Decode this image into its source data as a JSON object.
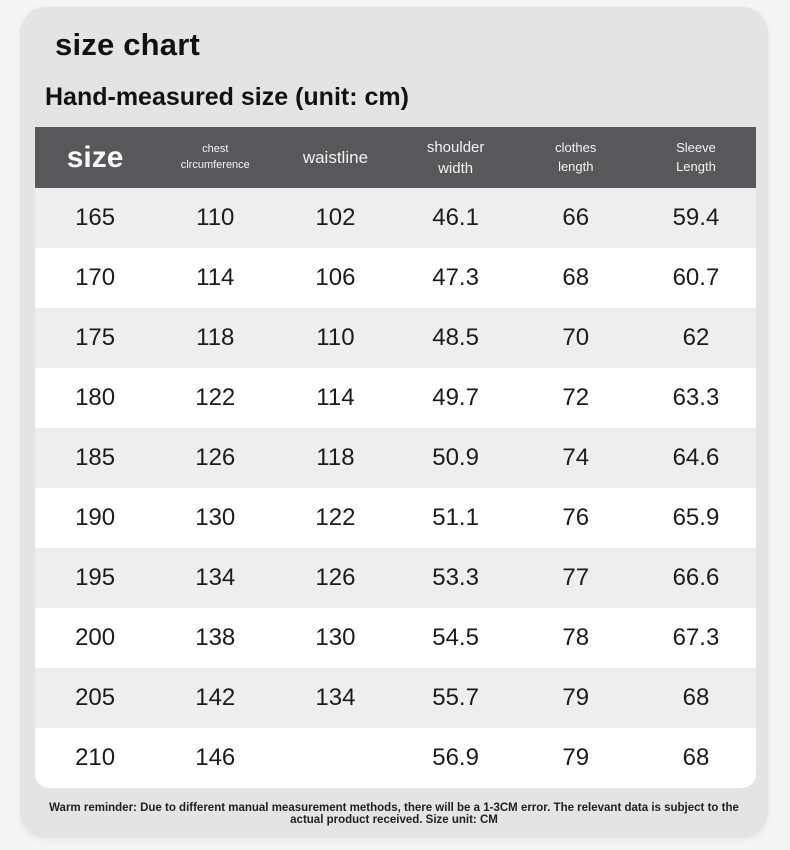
{
  "page": {
    "title": "size chart",
    "subtitle": "Hand-measured size (unit: cm)",
    "footer": "Warm reminder: Due to different manual measurement methods, there will be a 1-3CM error. The relevant data is subject to the actual product received. Size unit: CM"
  },
  "colors": {
    "card_background": "#e4e4e5",
    "header_background": "#58585a",
    "header_text": "#f3f3f3",
    "row_gray": "#eeeeef",
    "row_white": "#ffffff",
    "body_text": "#1c1c1c"
  },
  "chart_data": {
    "type": "table",
    "title": "size chart",
    "subtitle": "Hand-measured size (unit: cm)",
    "columns": [
      {
        "key": "size",
        "label": "size"
      },
      {
        "key": "chest-circumference",
        "label": "chest\nclrcumference"
      },
      {
        "key": "waistline",
        "label": "waistline"
      },
      {
        "key": "shoulder-width",
        "label": "shoulder\nwidth"
      },
      {
        "key": "clothes-length",
        "label": "clothes\nlength"
      },
      {
        "key": "sleeve-length",
        "label": "Sleeve\nLength"
      }
    ],
    "rows": [
      [
        "165",
        "110",
        "102",
        "46.1",
        "66",
        "59.4"
      ],
      [
        "170",
        "114",
        "106",
        "47.3",
        "68",
        "60.7"
      ],
      [
        "175",
        "118",
        "110",
        "48.5",
        "70",
        "62"
      ],
      [
        "180",
        "122",
        "114",
        "49.7",
        "72",
        "63.3"
      ],
      [
        "185",
        "126",
        "118",
        "50.9",
        "74",
        "64.6"
      ],
      [
        "190",
        "130",
        "122",
        "51.1",
        "76",
        "65.9"
      ],
      [
        "195",
        "134",
        "126",
        "53.3",
        "77",
        "66.6"
      ],
      [
        "200",
        "138",
        "130",
        "54.5",
        "78",
        "67.3"
      ],
      [
        "205",
        "142",
        "134",
        "55.7",
        "79",
        "68"
      ],
      [
        "210",
        "146",
        "",
        "56.9",
        "79",
        "68"
      ]
    ]
  }
}
